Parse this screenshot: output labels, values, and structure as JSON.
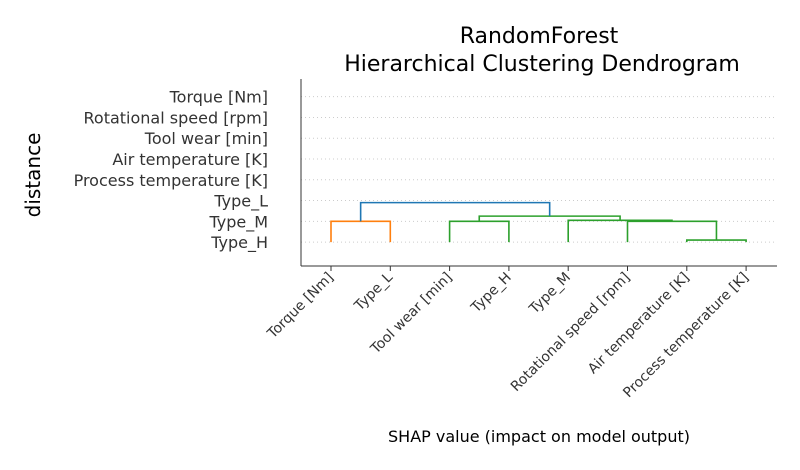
{
  "chart_data": {
    "type": "dendrogram",
    "title_line1": "RandomForest",
    "title_line2": "Hierarchical Clustering Dendrogram",
    "xlabel": "SHAP value (impact on model output)",
    "ylabel": "distance",
    "leaves": [
      "Torque [Nm]",
      "Type_L",
      "Tool wear [min]",
      "Type_H",
      "Type_M",
      "Rotational speed [rpm]",
      "Air temperature [K]",
      "Process temperature [K]"
    ],
    "y_tick_labels": [
      "Torque [Nm]",
      "Rotational speed [rpm]",
      "Tool wear [min]",
      "Air temperature [K]",
      "Process temperature [K]",
      "Type_L",
      "Type_M",
      "Type_H"
    ],
    "links": [
      {
        "left": 6,
        "right": 7,
        "height": 0.1,
        "color": "#2ca02c"
      },
      {
        "left": 5,
        "right": 6.5,
        "height": 1.0,
        "color": "#2ca02c"
      },
      {
        "left": 4,
        "right": 5.75,
        "height": 1.05,
        "color": "#2ca02c"
      },
      {
        "left": 2,
        "right": 3,
        "height": 1.0,
        "color": "#2ca02c"
      },
      {
        "left": 2.5,
        "right": 4.875,
        "height": 1.25,
        "color": "#2ca02c"
      },
      {
        "left": 0,
        "right": 1,
        "height": 1.0,
        "color": "#ff7f0e"
      },
      {
        "left": 0.5,
        "right": 3.6875,
        "height": 1.9,
        "color": "#1f77b4"
      }
    ],
    "ylim": [
      -1.15,
      7.85
    ],
    "grid": true
  }
}
